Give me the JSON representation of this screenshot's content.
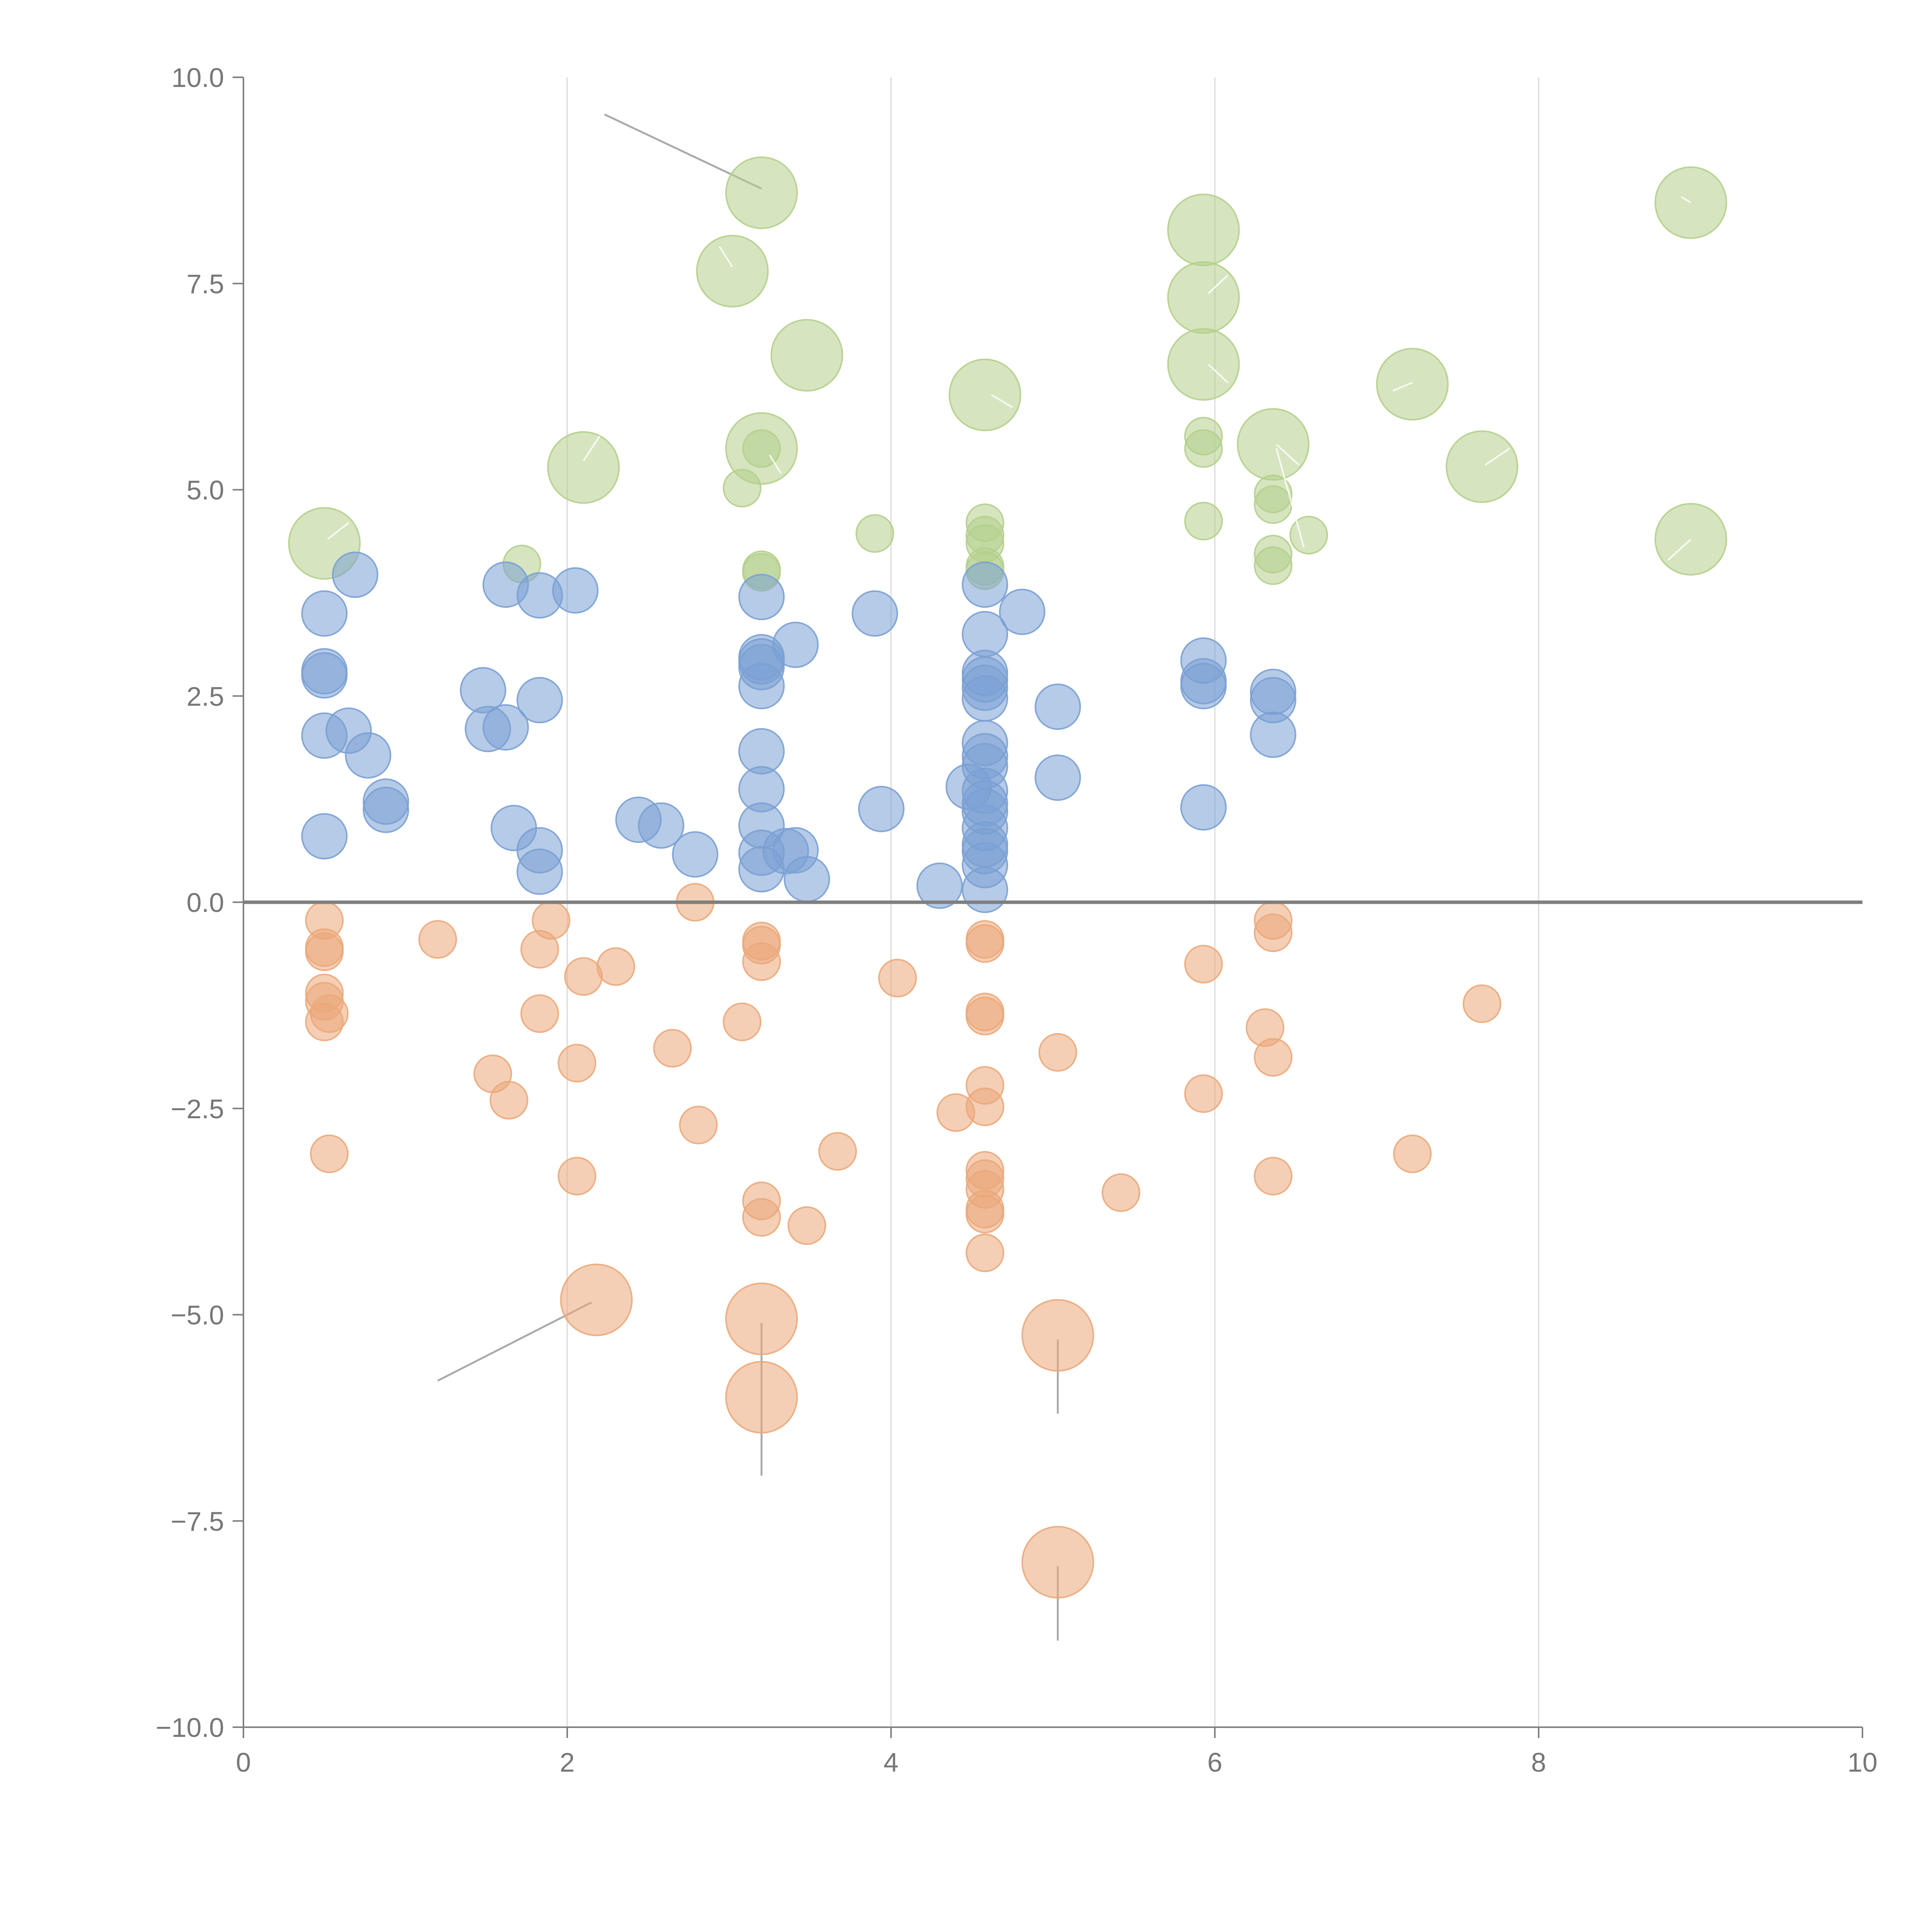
{
  "chart_data": {
    "type": "scatter",
    "title": "",
    "xlabel": "",
    "ylabel": "",
    "xlim": [
      0,
      10
    ],
    "ylim": [
      -10,
      10
    ],
    "xticks": [
      "0",
      "2",
      "4",
      "6",
      "8",
      "10"
    ],
    "yticks": [
      "10.0",
      "7.5",
      "5.0",
      "2.5",
      "0.0",
      "−2.5",
      "−5.0",
      "−7.5",
      "−10.0"
    ],
    "grid": "vertical",
    "zero_line": true,
    "series": [
      {
        "color": "#b5cf8c",
        "points": [
          {
            "x": 0.5,
            "y": 4.35,
            "r": "large"
          },
          {
            "x": 1.72,
            "y": 4.1,
            "r": "small"
          },
          {
            "x": 2.1,
            "y": 5.27,
            "r": "large"
          },
          {
            "x": 3.02,
            "y": 7.65,
            "r": "large"
          },
          {
            "x": 3.2,
            "y": 8.6,
            "r": "large"
          },
          {
            "x": 3.48,
            "y": 6.63,
            "r": "large"
          },
          {
            "x": 3.2,
            "y": 5.5,
            "r": "large"
          },
          {
            "x": 3.2,
            "y": 5.5,
            "r": "small"
          },
          {
            "x": 3.08,
            "y": 5.02,
            "r": "small"
          },
          {
            "x": 3.2,
            "y": 4.03,
            "r": "small"
          },
          {
            "x": 3.2,
            "y": 4.0,
            "r": "small"
          },
          {
            "x": 3.9,
            "y": 4.47,
            "r": "small"
          },
          {
            "x": 4.58,
            "y": 6.15,
            "r": "large"
          },
          {
            "x": 4.58,
            "y": 4.6,
            "r": "small"
          },
          {
            "x": 4.58,
            "y": 4.45,
            "r": "small"
          },
          {
            "x": 4.58,
            "y": 4.35,
            "r": "small"
          },
          {
            "x": 4.58,
            "y": 4.07,
            "r": "small"
          },
          {
            "x": 4.58,
            "y": 4.02,
            "r": "small"
          },
          {
            "x": 5.93,
            "y": 8.15,
            "r": "large"
          },
          {
            "x": 5.93,
            "y": 7.33,
            "r": "large"
          },
          {
            "x": 5.93,
            "y": 6.52,
            "r": "large"
          },
          {
            "x": 5.93,
            "y": 5.65,
            "r": "small"
          },
          {
            "x": 5.93,
            "y": 5.5,
            "r": "small"
          },
          {
            "x": 5.93,
            "y": 4.62,
            "r": "small"
          },
          {
            "x": 6.36,
            "y": 5.55,
            "r": "large"
          },
          {
            "x": 6.36,
            "y": 4.95,
            "r": "small"
          },
          {
            "x": 6.36,
            "y": 4.82,
            "r": "small"
          },
          {
            "x": 6.36,
            "y": 4.22,
            "r": "small"
          },
          {
            "x": 6.36,
            "y": 4.08,
            "r": "small"
          },
          {
            "x": 6.58,
            "y": 4.45,
            "r": "small"
          },
          {
            "x": 7.22,
            "y": 6.28,
            "r": "large"
          },
          {
            "x": 7.65,
            "y": 5.28,
            "r": "large"
          },
          {
            "x": 8.94,
            "y": 8.48,
            "r": "large"
          },
          {
            "x": 8.94,
            "y": 4.4,
            "r": "large"
          }
        ]
      },
      {
        "color": "#7aa0d4",
        "points": [
          {
            "x": 0.5,
            "y": 3.5
          },
          {
            "x": 0.5,
            "y": 2.8
          },
          {
            "x": 0.5,
            "y": 2.75
          },
          {
            "x": 0.5,
            "y": 2.02
          },
          {
            "x": 0.5,
            "y": 0.8
          },
          {
            "x": 0.69,
            "y": 3.97
          },
          {
            "x": 0.65,
            "y": 2.08
          },
          {
            "x": 0.77,
            "y": 1.78
          },
          {
            "x": 0.88,
            "y": 1.22
          },
          {
            "x": 0.88,
            "y": 1.12
          },
          {
            "x": 1.48,
            "y": 2.57
          },
          {
            "x": 1.51,
            "y": 2.1
          },
          {
            "x": 1.62,
            "y": 3.85
          },
          {
            "x": 1.62,
            "y": 2.12
          },
          {
            "x": 1.67,
            "y": 0.9
          },
          {
            "x": 1.83,
            "y": 3.72
          },
          {
            "x": 1.83,
            "y": 2.45
          },
          {
            "x": 1.83,
            "y": 0.63
          },
          {
            "x": 1.83,
            "y": 0.37
          },
          {
            "x": 2.05,
            "y": 3.78
          },
          {
            "x": 2.44,
            "y": 1.0
          },
          {
            "x": 2.58,
            "y": 0.93
          },
          {
            "x": 2.79,
            "y": 0.58
          },
          {
            "x": 3.2,
            "y": 3.7
          },
          {
            "x": 3.2,
            "y": 2.97
          },
          {
            "x": 3.2,
            "y": 2.92
          },
          {
            "x": 3.2,
            "y": 2.85
          },
          {
            "x": 3.2,
            "y": 2.62
          },
          {
            "x": 3.2,
            "y": 1.83
          },
          {
            "x": 3.2,
            "y": 1.37
          },
          {
            "x": 3.2,
            "y": 0.93
          },
          {
            "x": 3.2,
            "y": 0.6
          },
          {
            "x": 3.2,
            "y": 0.4
          },
          {
            "x": 3.41,
            "y": 3.12
          },
          {
            "x": 3.35,
            "y": 0.62
          },
          {
            "x": 3.41,
            "y": 0.63
          },
          {
            "x": 3.48,
            "y": 0.28
          },
          {
            "x": 3.9,
            "y": 3.5
          },
          {
            "x": 3.94,
            "y": 1.13
          },
          {
            "x": 4.3,
            "y": 0.2
          },
          {
            "x": 4.58,
            "y": 3.85
          },
          {
            "x": 4.58,
            "y": 3.25
          },
          {
            "x": 4.58,
            "y": 2.78
          },
          {
            "x": 4.58,
            "y": 2.7
          },
          {
            "x": 4.58,
            "y": 2.6
          },
          {
            "x": 4.58,
            "y": 2.47
          },
          {
            "x": 4.58,
            "y": 1.93
          },
          {
            "x": 4.58,
            "y": 1.77
          },
          {
            "x": 4.58,
            "y": 1.65
          },
          {
            "x": 4.58,
            "y": 1.35
          },
          {
            "x": 4.58,
            "y": 1.2
          },
          {
            "x": 4.58,
            "y": 1.1
          },
          {
            "x": 4.58,
            "y": 0.9
          },
          {
            "x": 4.58,
            "y": 0.7
          },
          {
            "x": 4.58,
            "y": 0.62
          },
          {
            "x": 4.58,
            "y": 0.45
          },
          {
            "x": 4.58,
            "y": 0.15
          },
          {
            "x": 4.48,
            "y": 1.4
          },
          {
            "x": 4.81,
            "y": 3.52
          },
          {
            "x": 5.03,
            "y": 2.37
          },
          {
            "x": 5.03,
            "y": 1.51
          },
          {
            "x": 5.93,
            "y": 2.93
          },
          {
            "x": 5.93,
            "y": 2.68
          },
          {
            "x": 5.93,
            "y": 2.62
          },
          {
            "x": 5.93,
            "y": 1.15
          },
          {
            "x": 6.36,
            "y": 2.55
          },
          {
            "x": 6.36,
            "y": 2.45
          },
          {
            "x": 6.36,
            "y": 2.03
          }
        ]
      },
      {
        "color": "#eba87a",
        "points": [
          {
            "x": 0.5,
            "y": -0.22,
            "r": "small"
          },
          {
            "x": 0.5,
            "y": -0.55,
            "r": "small"
          },
          {
            "x": 0.5,
            "y": -0.6,
            "r": "small"
          },
          {
            "x": 0.5,
            "y": -1.1,
            "r": "small"
          },
          {
            "x": 0.5,
            "y": -1.2,
            "r": "small"
          },
          {
            "x": 0.5,
            "y": -1.45,
            "r": "small"
          },
          {
            "x": 0.53,
            "y": -1.35,
            "r": "small"
          },
          {
            "x": 0.53,
            "y": -3.05,
            "r": "small"
          },
          {
            "x": 1.2,
            "y": -0.45,
            "r": "small"
          },
          {
            "x": 1.54,
            "y": -2.08,
            "r": "small"
          },
          {
            "x": 1.64,
            "y": -2.4,
            "r": "small"
          },
          {
            "x": 1.83,
            "y": -0.57,
            "r": "small"
          },
          {
            "x": 1.83,
            "y": -1.35,
            "r": "small"
          },
          {
            "x": 1.9,
            "y": -0.22,
            "r": "small"
          },
          {
            "x": 2.06,
            "y": -1.95,
            "r": "small"
          },
          {
            "x": 2.06,
            "y": -3.32,
            "r": "small"
          },
          {
            "x": 2.1,
            "y": -0.9,
            "r": "small"
          },
          {
            "x": 2.3,
            "y": -0.78,
            "r": "small"
          },
          {
            "x": 2.65,
            "y": -1.77,
            "r": "small"
          },
          {
            "x": 2.79,
            "y": 0.0,
            "r": "small"
          },
          {
            "x": 2.81,
            "y": -2.7,
            "r": "small"
          },
          {
            "x": 3.08,
            "y": -1.45,
            "r": "small"
          },
          {
            "x": 3.2,
            "y": -0.47,
            "r": "small"
          },
          {
            "x": 3.2,
            "y": -0.52,
            "r": "small"
          },
          {
            "x": 3.2,
            "y": -0.72,
            "r": "small"
          },
          {
            "x": 3.2,
            "y": -3.62,
            "r": "small"
          },
          {
            "x": 3.2,
            "y": -3.82,
            "r": "small"
          },
          {
            "x": 3.48,
            "y": -3.92,
            "r": "small"
          },
          {
            "x": 3.67,
            "y": -3.02,
            "r": "small"
          },
          {
            "x": 4.04,
            "y": -0.92,
            "r": "small"
          },
          {
            "x": 4.4,
            "y": -2.55,
            "r": "small"
          },
          {
            "x": 4.58,
            "y": -0.45,
            "r": "small"
          },
          {
            "x": 4.58,
            "y": -0.5,
            "r": "small"
          },
          {
            "x": 4.58,
            "y": -1.33,
            "r": "small"
          },
          {
            "x": 4.58,
            "y": -1.38,
            "r": "small"
          },
          {
            "x": 4.58,
            "y": -2.22,
            "r": "small"
          },
          {
            "x": 4.58,
            "y": -2.48,
            "r": "small"
          },
          {
            "x": 4.58,
            "y": -3.25,
            "r": "small"
          },
          {
            "x": 4.58,
            "y": -3.35,
            "r": "small"
          },
          {
            "x": 4.58,
            "y": -3.48,
            "r": "small"
          },
          {
            "x": 4.58,
            "y": -3.72,
            "r": "small"
          },
          {
            "x": 4.58,
            "y": -3.78,
            "r": "small"
          },
          {
            "x": 4.58,
            "y": -4.25,
            "r": "small"
          },
          {
            "x": 5.03,
            "y": -1.82,
            "r": "small"
          },
          {
            "x": 5.42,
            "y": -3.52,
            "r": "small"
          },
          {
            "x": 5.93,
            "y": -0.75,
            "r": "small"
          },
          {
            "x": 5.93,
            "y": -2.32,
            "r": "small"
          },
          {
            "x": 6.31,
            "y": -1.52,
            "r": "small"
          },
          {
            "x": 6.36,
            "y": -0.22,
            "r": "small"
          },
          {
            "x": 6.36,
            "y": -0.37,
            "r": "small"
          },
          {
            "x": 6.36,
            "y": -1.88,
            "r": "small"
          },
          {
            "x": 6.36,
            "y": -3.32,
            "r": "small"
          },
          {
            "x": 7.22,
            "y": -3.05,
            "r": "small"
          },
          {
            "x": 7.65,
            "y": -1.23,
            "r": "small"
          },
          {
            "x": 2.18,
            "y": -4.82,
            "r": "large"
          },
          {
            "x": 3.2,
            "y": -5.05,
            "r": "large"
          },
          {
            "x": 3.2,
            "y": -6.0,
            "r": "large"
          },
          {
            "x": 5.03,
            "y": -5.25,
            "r": "large"
          },
          {
            "x": 5.03,
            "y": -8.0,
            "r": "large"
          }
        ]
      }
    ]
  }
}
